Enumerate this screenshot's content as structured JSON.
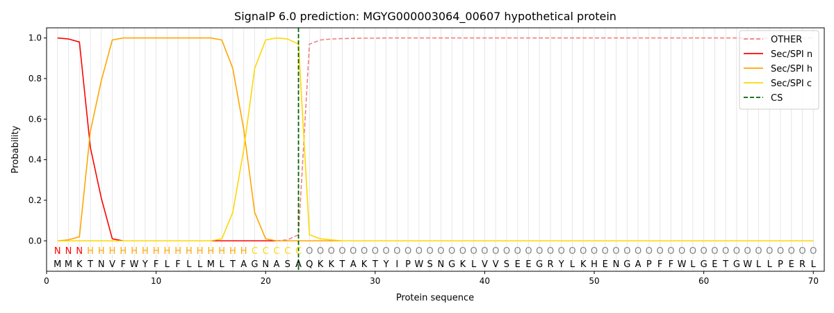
{
  "chart_data": {
    "type": "line",
    "title": "SignalP 6.0 prediction: MGYG000003064_00607 hypothetical protein",
    "xlabel": "Protein sequence",
    "ylabel": "Probability",
    "xlim": [
      0,
      71
    ],
    "ylim": [
      -0.15,
      1.05
    ],
    "x_ticks": [
      0,
      10,
      20,
      30,
      40,
      50,
      60,
      70
    ],
    "y_ticks": [
      0.0,
      0.2,
      0.4,
      0.6,
      0.8,
      1.0
    ],
    "grid": "vertical at each residue",
    "legend_placement": "top-right",
    "sequence": [
      "M",
      "M",
      "K",
      "T",
      "N",
      "V",
      "F",
      "W",
      "Y",
      "F",
      "L",
      "F",
      "L",
      "L",
      "M",
      "L",
      "T",
      "A",
      "G",
      "N",
      "A",
      "S",
      "A",
      "Q",
      "K",
      "K",
      "T",
      "A",
      "K",
      "T",
      "Y",
      "I",
      "P",
      "W",
      "S",
      "N",
      "G",
      "K",
      "L",
      "V",
      "V",
      "S",
      "E",
      "E",
      "G",
      "R",
      "Y",
      "L",
      "K",
      "H",
      "E",
      "N",
      "G",
      "A",
      "P",
      "F",
      "F",
      "W",
      "L",
      "G",
      "E",
      "T",
      "G",
      "W",
      "L",
      "L",
      "P",
      "E",
      "R",
      "L"
    ],
    "region_labels": [
      "N",
      "N",
      "N",
      "H",
      "H",
      "H",
      "H",
      "H",
      "H",
      "H",
      "H",
      "H",
      "H",
      "H",
      "H",
      "H",
      "H",
      "H",
      "C",
      "C",
      "C",
      "C",
      "C",
      "O",
      "O",
      "O",
      "O",
      "O",
      "O",
      "O",
      "O",
      "O",
      "O",
      "O",
      "O",
      "O",
      "O",
      "O",
      "O",
      "O",
      "O",
      "O",
      "O",
      "O",
      "O",
      "O",
      "O",
      "O",
      "O",
      "O",
      "O",
      "O",
      "O",
      "O",
      "O",
      "O",
      "O",
      "O",
      "O",
      "O",
      "O",
      "O",
      "O",
      "O",
      "O",
      "O",
      "O",
      "O",
      "O",
      "O"
    ],
    "region_colors": {
      "N": "#ff0000",
      "H": "#ffa500",
      "C": "#ffd700",
      "O": "#808080"
    },
    "cleavage_site": 23,
    "series": [
      {
        "name": "OTHER",
        "color": "#f08080",
        "style": "dashed",
        "values": [
          0,
          0,
          0,
          0,
          0,
          0,
          0,
          0,
          0,
          0,
          0,
          0,
          0,
          0,
          0,
          0,
          0,
          0,
          0,
          0,
          0,
          0.005,
          0.03,
          0.97,
          0.99,
          0.995,
          0.997,
          0.998,
          0.999,
          0.999,
          1,
          1,
          1,
          1,
          1,
          1,
          1,
          1,
          1,
          1,
          1,
          1,
          1,
          1,
          1,
          1,
          1,
          1,
          1,
          1,
          1,
          1,
          1,
          1,
          1,
          1,
          1,
          1,
          1,
          1,
          1,
          1,
          1,
          1,
          1,
          1,
          1,
          1,
          1,
          1
        ]
      },
      {
        "name": "Sec/SPI n",
        "color": "#ff0000",
        "style": "solid",
        "values": [
          1.0,
          0.995,
          0.98,
          0.46,
          0.21,
          0.01,
          0,
          0,
          0,
          0,
          0,
          0,
          0,
          0,
          0,
          0,
          0,
          0,
          0,
          0,
          0,
          0,
          0,
          0,
          0,
          0,
          0,
          0,
          0,
          0,
          0,
          0,
          0,
          0,
          0,
          0,
          0,
          0,
          0,
          0,
          0,
          0,
          0,
          0,
          0,
          0,
          0,
          0,
          0,
          0,
          0,
          0,
          0,
          0,
          0,
          0,
          0,
          0,
          0,
          0,
          0,
          0,
          0,
          0,
          0,
          0,
          0,
          0,
          0,
          0
        ]
      },
      {
        "name": "Sec/SPI h",
        "color": "#ffa500",
        "style": "solid",
        "values": [
          0,
          0.005,
          0.02,
          0.54,
          0.79,
          0.99,
          1,
          1,
          1,
          1,
          1,
          1,
          1,
          1,
          1,
          0.99,
          0.85,
          0.55,
          0.14,
          0.01,
          0,
          0,
          0,
          0,
          0,
          0,
          0,
          0,
          0,
          0,
          0,
          0,
          0,
          0,
          0,
          0,
          0,
          0,
          0,
          0,
          0,
          0,
          0,
          0,
          0,
          0,
          0,
          0,
          0,
          0,
          0,
          0,
          0,
          0,
          0,
          0,
          0,
          0,
          0,
          0,
          0,
          0,
          0,
          0,
          0,
          0,
          0,
          0,
          0,
          0
        ]
      },
      {
        "name": "Sec/SPI c",
        "color": "#ffd700",
        "style": "solid",
        "values": [
          0,
          0,
          0,
          0,
          0,
          0,
          0,
          0,
          0,
          0,
          0,
          0,
          0,
          0,
          0,
          0.01,
          0.14,
          0.45,
          0.85,
          0.99,
          1.0,
          0.995,
          0.97,
          0.03,
          0.01,
          0.005,
          0,
          0,
          0,
          0,
          0,
          0,
          0,
          0,
          0,
          0,
          0,
          0,
          0,
          0,
          0,
          0,
          0,
          0,
          0,
          0,
          0,
          0,
          0,
          0,
          0,
          0,
          0,
          0,
          0,
          0,
          0,
          0,
          0,
          0,
          0,
          0,
          0,
          0,
          0,
          0,
          0,
          0,
          0,
          0
        ]
      }
    ],
    "legend_entries": [
      {
        "label": "OTHER",
        "color": "#f08080",
        "style": "dashed"
      },
      {
        "label": "Sec/SPI n",
        "color": "#ff0000",
        "style": "solid"
      },
      {
        "label": "Sec/SPI h",
        "color": "#ffa500",
        "style": "solid"
      },
      {
        "label": "Sec/SPI c",
        "color": "#ffd700",
        "style": "solid"
      },
      {
        "label": "CS",
        "color": "#006400",
        "style": "dashed"
      }
    ]
  }
}
